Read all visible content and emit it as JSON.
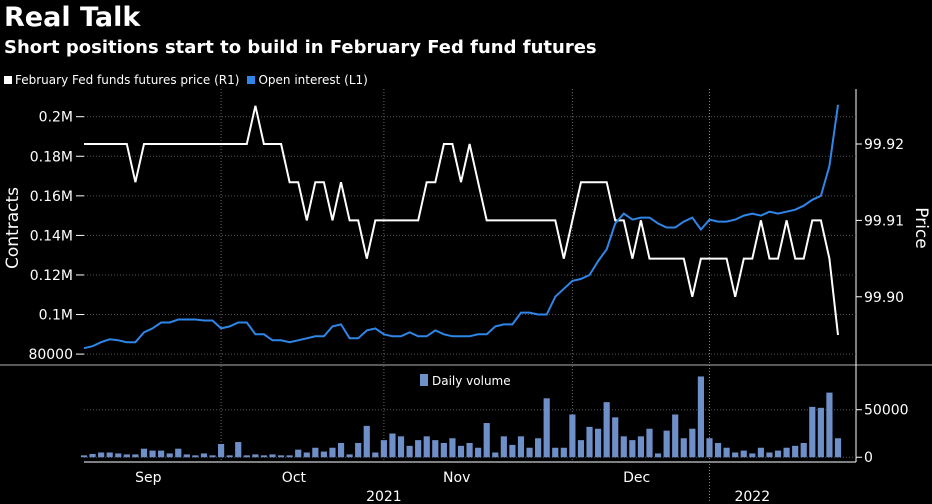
{
  "title": "Real Talk",
  "subtitle": "Short positions start to build in February Fed fund futures",
  "legend": [
    {
      "label": "February Fed funds futures price (R1)",
      "color": "#ffffff"
    },
    {
      "label": "Open interest (L1)",
      "color": "#2f86e8"
    }
  ],
  "chart_data": [
    {
      "type": "line",
      "series": [
        {
          "name": "Open interest (L1)",
          "axis": "left",
          "color": "#2f86e8",
          "values": [
            83000,
            84000,
            86000,
            87500,
            87000,
            86000,
            86000,
            91000,
            93000,
            96000,
            96000,
            97500,
            97500,
            97500,
            97000,
            97000,
            93000,
            94000,
            96000,
            96000,
            90000,
            90000,
            87000,
            87000,
            86000,
            87000,
            88000,
            89000,
            89000,
            94000,
            95000,
            88000,
            88000,
            92000,
            93000,
            90000,
            89000,
            89000,
            91000,
            89000,
            89000,
            92000,
            90000,
            89000,
            89000,
            89000,
            90000,
            90000,
            94000,
            95000,
            95000,
            101000,
            101000,
            100000,
            100000,
            109000,
            113000,
            117000,
            118000,
            120000,
            127000,
            133000,
            146000,
            151000,
            148000,
            149000,
            149000,
            146000,
            144000,
            144000,
            147000,
            149000,
            143000,
            148000,
            147000,
            147000,
            148000,
            150000,
            151000,
            150000,
            152000,
            151000,
            152000,
            153000,
            155000,
            158000,
            160000,
            175000,
            206000
          ]
        },
        {
          "name": "February Fed funds futures price (R1)",
          "axis": "right",
          "color": "#ffffff",
          "values": [
            99.92,
            99.92,
            99.92,
            99.92,
            99.92,
            99.92,
            99.915,
            99.92,
            99.92,
            99.92,
            99.92,
            99.92,
            99.92,
            99.92,
            99.92,
            99.92,
            99.92,
            99.92,
            99.92,
            99.92,
            99.925,
            99.92,
            99.92,
            99.92,
            99.915,
            99.915,
            99.91,
            99.915,
            99.915,
            99.91,
            99.915,
            99.91,
            99.91,
            99.905,
            99.91,
            99.91,
            99.91,
            99.91,
            99.91,
            99.91,
            99.915,
            99.915,
            99.92,
            99.92,
            99.915,
            99.92,
            99.915,
            99.91,
            99.91,
            99.91,
            99.91,
            99.91,
            99.91,
            99.91,
            99.91,
            99.91,
            99.905,
            99.91,
            99.915,
            99.915,
            99.915,
            99.915,
            99.91,
            99.91,
            99.905,
            99.91,
            99.905,
            99.905,
            99.905,
            99.905,
            99.905,
            99.9,
            99.905,
            99.905,
            99.905,
            99.905,
            99.9,
            99.905,
            99.905,
            99.91,
            99.905,
            99.905,
            99.91,
            99.905,
            99.905,
            99.91,
            99.91,
            99.905,
            99.895
          ]
        }
      ],
      "y_left": {
        "label": "Contracts",
        "ticks": [
          80000,
          100000,
          120000,
          140000,
          160000,
          180000,
          200000
        ],
        "tick_labels": [
          "80000",
          "0.1M",
          "0.12M",
          "0.14M",
          "0.16M",
          "0.18M",
          "0.2M"
        ],
        "range": [
          75000,
          214000
        ]
      },
      "y_right": {
        "label": "Price",
        "ticks": [
          99.9,
          99.91,
          99.92
        ],
        "tick_labels": [
          "99.90",
          "99.91",
          "99.92"
        ],
        "range": [
          99.8912,
          99.9272
        ]
      },
      "grid": true
    },
    {
      "type": "bar",
      "legend": "Daily volume",
      "color": "#6f8fc8",
      "values": [
        2000,
        3500,
        5000,
        5000,
        4000,
        3000,
        3000,
        9000,
        7000,
        7000,
        4000,
        9000,
        3000,
        2000,
        4000,
        2000,
        14000,
        2000,
        16000,
        2000,
        3000,
        2000,
        3000,
        2000,
        2000,
        8000,
        5000,
        10000,
        6000,
        10000,
        15000,
        3000,
        15000,
        33000,
        5000,
        18000,
        25000,
        22000,
        12000,
        18000,
        22000,
        18000,
        15000,
        20000,
        12000,
        15000,
        10000,
        36000,
        5000,
        22000,
        13000,
        22000,
        10000,
        20000,
        62000,
        10000,
        10000,
        45000,
        18000,
        32000,
        30000,
        58000,
        42000,
        22000,
        18000,
        22000,
        30000,
        4000,
        28000,
        45000,
        20000,
        30000,
        85000,
        20000,
        15000,
        10000,
        5000,
        7000,
        4000,
        10000,
        5000,
        7000,
        10000,
        12000,
        15000,
        53000,
        52000,
        68000,
        20000
      ],
      "y_ticks": [
        0,
        50000
      ],
      "y_tick_labels": [
        "0",
        "50000"
      ],
      "range": [
        -5000,
        96000
      ]
    }
  ],
  "x_axis": {
    "month_labels": [
      {
        "label": "Sep",
        "index": 7.5
      },
      {
        "label": "Oct",
        "index": 24.5
      },
      {
        "label": "Nov",
        "index": 43.5
      },
      {
        "label": "Dec",
        "index": 64.5
      }
    ],
    "year_labels": [
      {
        "label": "2021",
        "index": 35
      },
      {
        "label": "2022",
        "index": 78
      }
    ],
    "month_starts": [
      16,
      35,
      57
    ],
    "year_start": 73
  }
}
